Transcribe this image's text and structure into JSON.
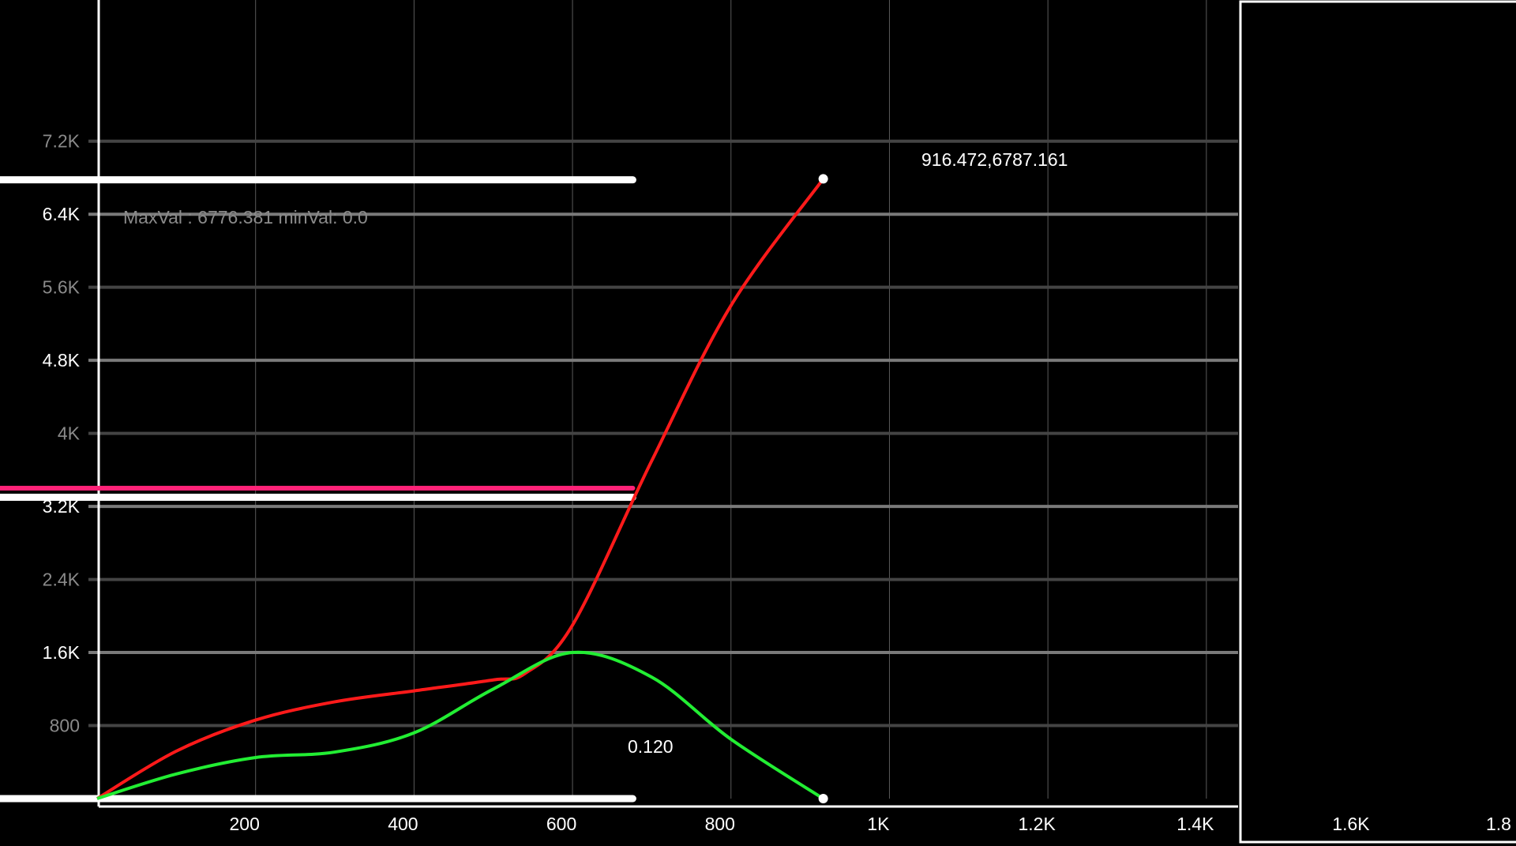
{
  "chart_data": {
    "type": "line",
    "xlim": [
      0,
      1440
    ],
    "ylim": [
      0,
      8400
    ],
    "x_ticks": [
      {
        "value": 200,
        "label": "200",
        "bright": true
      },
      {
        "value": 400,
        "label": "400",
        "bright": true
      },
      {
        "value": 600,
        "label": "600",
        "bright": true
      },
      {
        "value": 800,
        "label": "800",
        "bright": true
      },
      {
        "value": 1000,
        "label": "1K",
        "bright": true
      },
      {
        "value": 1200,
        "label": "1.2K",
        "bright": true
      },
      {
        "value": 1400,
        "label": "1.4K",
        "bright": true
      }
    ],
    "y_ticks": [
      {
        "value": 800,
        "label": "800",
        "bright": false
      },
      {
        "value": 1600,
        "label": "1.6K",
        "bright": true
      },
      {
        "value": 2400,
        "label": "2.4K",
        "bright": false
      },
      {
        "value": 3200,
        "label": "3.2K",
        "bright": true
      },
      {
        "value": 4000,
        "label": "4K",
        "bright": false
      },
      {
        "value": 4800,
        "label": "4.8K",
        "bright": true
      },
      {
        "value": 5600,
        "label": "5.6K",
        "bright": false
      },
      {
        "value": 6400,
        "label": "6.4K",
        "bright": true
      },
      {
        "value": 7200,
        "label": "7.2K",
        "bright": false
      }
    ],
    "series": [
      {
        "color": "#ff1a1a",
        "x": [
          0,
          100,
          200,
          300,
          400,
          500,
          540,
          600,
          700,
          800,
          916.472
        ],
        "y": [
          0,
          520,
          860,
          1060,
          1180,
          1300,
          1370,
          1900,
          3700,
          5400,
          6787.161
        ]
      },
      {
        "color": "#22ee33",
        "x": [
          0,
          100,
          200,
          300,
          400,
          500,
          600,
          700,
          800,
          916.472
        ],
        "y": [
          0,
          270,
          450,
          510,
          720,
          1200,
          1600,
          1330,
          650,
          0
        ]
      }
    ],
    "end_markers": [
      {
        "x": 916.472,
        "y": 6787.161
      },
      {
        "x": 916.472,
        "y": 0
      }
    ],
    "horizontal_markers": [
      {
        "y": 6776.381,
        "x_end": 700,
        "color": "#ffffff"
      },
      {
        "y": 3400,
        "x_end": 700,
        "color": "#ff2277"
      },
      {
        "y": 3300,
        "x_end": 700,
        "color": "#ffffff"
      },
      {
        "y": 0,
        "x_end": 700,
        "color": "#ffffff"
      }
    ],
    "annotations": {
      "point_label": "916.472,6787.161",
      "stats_label": "MaxVal : 6776.381 minVal: 0.0",
      "value_label": "0.120"
    },
    "side_panel": {
      "tick_labels": [
        "1.6K",
        "1.8"
      ]
    }
  }
}
